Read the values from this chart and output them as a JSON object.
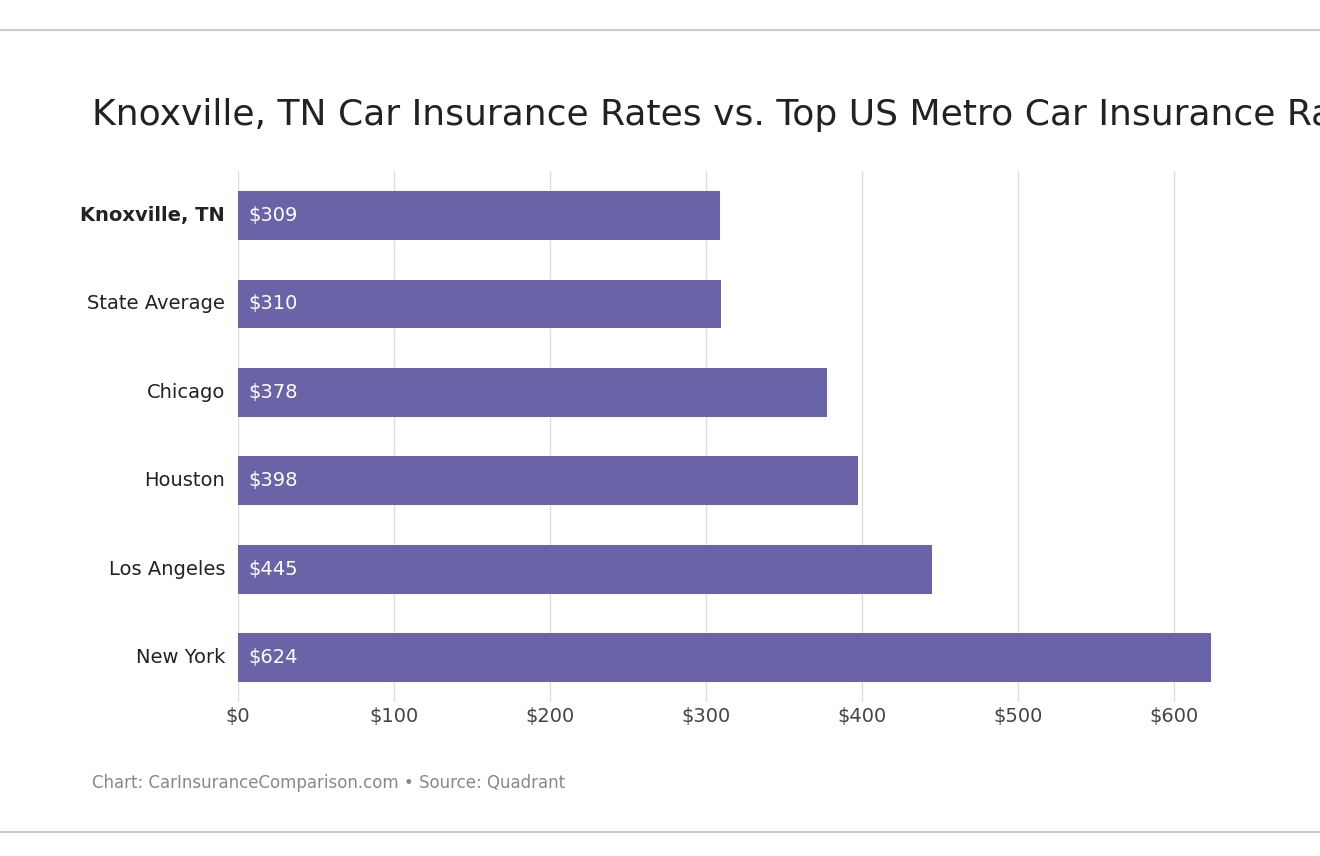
{
  "title": "Knoxville, TN Car Insurance Rates vs. Top US Metro Car Insurance Rates",
  "categories": [
    "New York",
    "Los Angeles",
    "Houston",
    "Chicago",
    "State Average",
    "Knoxville, TN"
  ],
  "values": [
    624,
    445,
    398,
    378,
    310,
    309
  ],
  "labels": [
    "$624",
    "$445",
    "$398",
    "$378",
    "$310",
    "$309"
  ],
  "ylabel_bold": [
    false,
    false,
    false,
    false,
    false,
    true
  ],
  "bar_color": "#6b63a8",
  "label_color": "#ffffff",
  "title_fontsize": 26,
  "tick_label_fontsize": 14,
  "bar_label_fontsize": 14,
  "xlim": [
    0,
    660
  ],
  "xtick_values": [
    0,
    100,
    200,
    300,
    400,
    500,
    600
  ],
  "xtick_labels": [
    "$0",
    "$100",
    "$200",
    "$300",
    "$400",
    "$500",
    "$600"
  ],
  "background_color": "#ffffff",
  "caption": "Chart: CarInsuranceComparison.com • Source: Quadrant",
  "caption_fontsize": 12,
  "caption_color": "#888888",
  "grid_color": "#dddddd",
  "bar_height": 0.55
}
